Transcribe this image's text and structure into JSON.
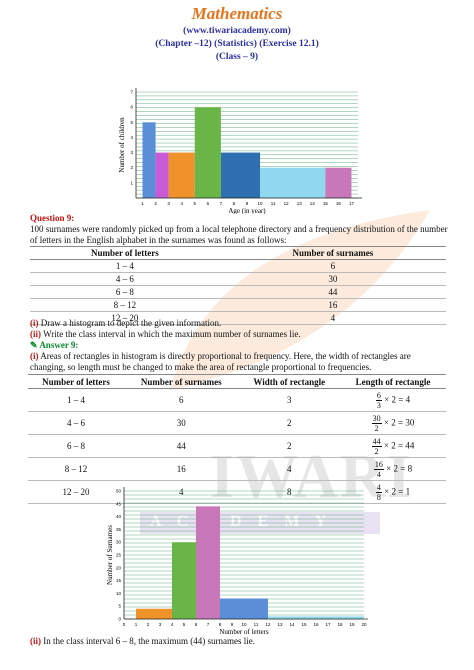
{
  "header": {
    "title": "Mathematics",
    "website": "(www.tiwariacademy.com)",
    "chapter": "(Chapter –12) (Statistics) (Exercise 12.1)",
    "class": "(Class – 9)"
  },
  "watermark": {
    "brand": "IWARI",
    "sub": "A C A D E M Y"
  },
  "colors": {
    "title": "#e8731a",
    "header": "#2a2fa0",
    "question": "#c01515",
    "answer": "#0a8a2a",
    "grid": "#3a9a5a"
  },
  "question": {
    "label": "Question 9:",
    "text": "100 surnames were randomly picked up from a local telephone directory and a frequency distribution of the number of letters in the English alphabet in the surnames was found as follows:",
    "table": {
      "headers": [
        "Number of letters",
        "Number of surnames"
      ],
      "rows": [
        [
          "1 – 4",
          "6"
        ],
        [
          "4 – 6",
          "30"
        ],
        [
          "6 – 8",
          "44"
        ],
        [
          "8 – 12",
          "16"
        ],
        [
          "12 – 20",
          "4"
        ]
      ]
    },
    "part_i_tag": "(i)",
    "part_i": "Draw a histogram to depict the given information.",
    "part_ii_tag": "(ii)",
    "part_ii": "Write the class interval in which the maximum number of surnames lie."
  },
  "answer": {
    "label": "Answer 9:",
    "part_i_tag": "(i)",
    "part_i": "Areas of rectangles in histogram is directly proportional to frequency. Here, the width of rectangles are changing, so length must be changed to make the area of rectangle proportional to frequencies.",
    "table": {
      "headers": [
        "Number of letters",
        "Number of surnames",
        "Width of rectangle",
        "Length of rectangle"
      ],
      "rows": [
        {
          "interval": "1 – 4",
          "surnames": "6",
          "width": "3",
          "num": "6",
          "den": "3",
          "result": "× 2 = 4"
        },
        {
          "interval": "4 – 6",
          "surnames": "30",
          "width": "2",
          "num": "30",
          "den": "2",
          "result": "× 2 = 30"
        },
        {
          "interval": "6 – 8",
          "surnames": "44",
          "width": "2",
          "num": "44",
          "den": "2",
          "result": "× 2 = 44"
        },
        {
          "interval": "8 – 12",
          "surnames": "16",
          "width": "4",
          "num": "16",
          "den": "4",
          "result": "× 2 = 8"
        },
        {
          "interval": "12 – 20",
          "surnames": "4",
          "width": "8",
          "num": "4",
          "den": "8",
          "result": "× 2 = 1"
        }
      ]
    },
    "part_ii_tag": "(ii)",
    "part_ii": "In the class interval 6 – 8, the maximum (44) surnames lie."
  },
  "chart_data": [
    {
      "type": "bar",
      "title": "",
      "xlabel": "Age (in year)",
      "ylabel": "Number of children",
      "xticks": [
        1,
        2,
        3,
        4,
        5,
        6,
        7,
        8,
        9,
        10,
        11,
        12,
        13,
        14,
        15,
        16,
        17
      ],
      "yticks": [
        1,
        2,
        3,
        4,
        5,
        6,
        7
      ],
      "ylim": [
        0,
        7
      ],
      "xlim": [
        0.5,
        17.5
      ],
      "bars": [
        {
          "from": 1,
          "to": 2,
          "value": 5,
          "color": "#5a8fd8"
        },
        {
          "from": 2,
          "to": 3,
          "value": 3,
          "color": "#c85ad8"
        },
        {
          "from": 3,
          "to": 5,
          "value": 3,
          "color": "#f0922a"
        },
        {
          "from": 5,
          "to": 7,
          "value": 6,
          "color": "#6ab548"
        },
        {
          "from": 7,
          "to": 10,
          "value": 3,
          "color": "#2f6fb0"
        },
        {
          "from": 10,
          "to": 15,
          "value": 2,
          "color": "#8fd8f0"
        },
        {
          "from": 15,
          "to": 17,
          "value": 2,
          "color": "#c878b8"
        }
      ]
    },
    {
      "type": "bar",
      "title": "",
      "xlabel": "Number of letters",
      "ylabel": "Number of Surnames",
      "xticks": [
        0,
        1,
        2,
        3,
        4,
        5,
        6,
        7,
        8,
        9,
        10,
        11,
        12,
        13,
        14,
        15,
        16,
        17,
        18,
        19,
        20
      ],
      "yticks": [
        0,
        5,
        10,
        15,
        20,
        25,
        30,
        35,
        40,
        45,
        50
      ],
      "ylim": [
        0,
        50
      ],
      "xlim": [
        0,
        20
      ],
      "bars": [
        {
          "from": 1,
          "to": 4,
          "value": 4,
          "color": "#f0922a"
        },
        {
          "from": 4,
          "to": 6,
          "value": 30,
          "color": "#6ab548"
        },
        {
          "from": 6,
          "to": 8,
          "value": 44,
          "color": "#c878b8"
        },
        {
          "from": 8,
          "to": 12,
          "value": 8,
          "color": "#5a8fd8"
        },
        {
          "from": 12,
          "to": 20,
          "value": 1,
          "color": "#8fd8f0"
        }
      ]
    }
  ]
}
